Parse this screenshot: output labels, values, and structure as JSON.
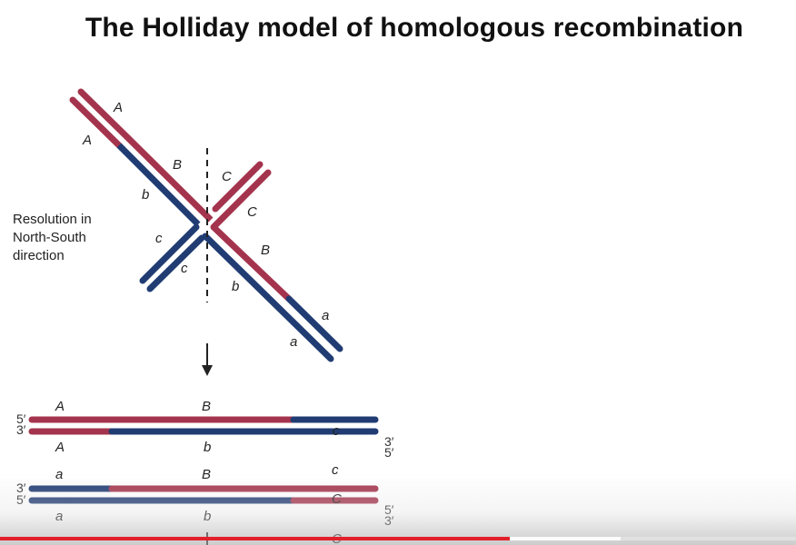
{
  "title": "The Holliday model of homologous recombination",
  "resolution_label": [
    "Resolution in",
    "North-South",
    "direction"
  ],
  "junction_labels": {
    "A_outer": "A",
    "A_inner": "A",
    "B_upper": "B",
    "b_upper": "b",
    "C_outer": "C",
    "C_inner": "C",
    "c_left": "c",
    "c_low": "c",
    "B_lower": "B",
    "b_lower": "b",
    "a_outer": "a",
    "a_inner": "a"
  },
  "product1": {
    "top_label_A": "A",
    "top_label_B": "B",
    "strand_label_c": "c",
    "bottom_label_A": "A",
    "bottom_label_b": "b",
    "left_ends": [
      "5′",
      "3′"
    ],
    "right_ends": [
      "3′",
      "5′"
    ]
  },
  "product2": {
    "top_label_a": "a",
    "top_label_B": "B",
    "top_label_c": "c",
    "strand_label_C": "C",
    "bottom_label_a": "a",
    "bottom_label_b": "b",
    "bottom_label_C": "C",
    "left_ends": [
      "3′",
      "5′"
    ],
    "right_ends": [
      "5′",
      "3′"
    ]
  },
  "colors": {
    "red_strand": "#a4344d",
    "blue_strand": "#203c73",
    "progress_played": "#e3202a"
  },
  "video_progress": {
    "played_fraction": 0.64,
    "buffered_fraction": 0.78
  }
}
